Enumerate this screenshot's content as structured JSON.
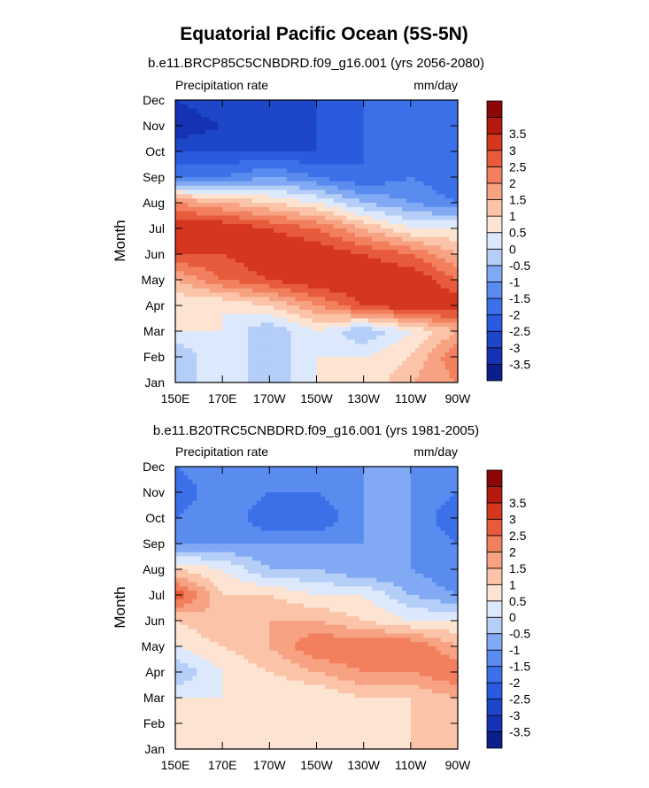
{
  "figure_title": "Equatorial Pacific Ocean (5S-5N)",
  "colors": {
    "levels": [
      -3.5,
      -3,
      -2.5,
      -2,
      -1.5,
      -1,
      -0.5,
      0,
      0.5,
      1,
      1.5,
      2,
      2.5,
      3,
      3.5
    ],
    "palette": [
      "#0a1e8c",
      "#1632b4",
      "#1e46c8",
      "#2a5ade",
      "#3c70e8",
      "#5a8cf0",
      "#82aaf4",
      "#b4cef8",
      "#dce8fc",
      "#fde4d2",
      "#fbc4a8",
      "#f7a282",
      "#f2805e",
      "#e85a3c",
      "#d4361e",
      "#b41a10",
      "#8c0808"
    ]
  },
  "chart_data": [
    {
      "type": "heatmap",
      "plot_type": "filled contour (Hovmoller)",
      "title": "b.e11.BRCP85C5CNBDRD.f09_g16.001 (yrs 2056-2080)",
      "left_label": "Precipitation rate",
      "right_label": "mm/day",
      "xlabel": "",
      "ylabel": "Month",
      "x_ticks": [
        "150E",
        "170E",
        "170W",
        "150W",
        "130W",
        "110W",
        "90W"
      ],
      "y_ticks": [
        "Jan",
        "Feb",
        "Mar",
        "Apr",
        "May",
        "Jun",
        "Jul",
        "Aug",
        "Sep",
        "Oct",
        "Nov",
        "Dec"
      ],
      "xlim": [
        150,
        270
      ],
      "ylim": [
        1,
        12
      ],
      "colorbar_labels": [
        "-3.5",
        "-3",
        "-2.5",
        "-2",
        "-1.5",
        "-1",
        "-0.5",
        "0",
        "0.5",
        "1",
        "1.5",
        "2",
        "2.5",
        "3",
        "3.5"
      ],
      "anomaly_field": {
        "longitude_deg_east": [
          150,
          170,
          190,
          210,
          230,
          250,
          270
        ],
        "rows": [
          {
            "month": "Jan",
            "values": [
              -0.5,
              0.5,
              -0.5,
              0.5,
              0.5,
              1.5,
              2.0
            ]
          },
          {
            "month": "Feb",
            "values": [
              -0.5,
              0.5,
              -0.5,
              0.5,
              0.5,
              1.0,
              2.5
            ]
          },
          {
            "month": "Mar",
            "values": [
              0.5,
              0.5,
              -0.5,
              0.5,
              -0.5,
              0.5,
              1.5
            ]
          },
          {
            "month": "Apr",
            "values": [
              0.5,
              0.5,
              1.0,
              2.0,
              3.0,
              3.5,
              3.5
            ]
          },
          {
            "month": "May",
            "values": [
              1.5,
              2.5,
              3.0,
              3.5,
              3.5,
              3.5,
              2.5
            ]
          },
          {
            "month": "Jun",
            "values": [
              3.0,
              3.0,
              3.5,
              3.5,
              3.0,
              2.5,
              1.5
            ]
          },
          {
            "month": "Jul",
            "values": [
              3.5,
              3.5,
              3.0,
              2.5,
              1.5,
              0.5,
              0.5
            ]
          },
          {
            "month": "Aug",
            "values": [
              2.0,
              1.5,
              1.0,
              0.5,
              -0.5,
              -1.0,
              -1.5
            ]
          },
          {
            "month": "Sep",
            "values": [
              -1.5,
              -1.5,
              -1.0,
              -1.5,
              -2.0,
              -1.5,
              -2.0
            ]
          },
          {
            "month": "Oct",
            "values": [
              -2.5,
              -2.5,
              -2.5,
              -2.5,
              -2.0,
              -1.5,
              -2.0
            ]
          },
          {
            "month": "Nov",
            "values": [
              -3.5,
              -3.0,
              -3.0,
              -2.5,
              -2.0,
              -2.0,
              -2.0
            ]
          },
          {
            "month": "Dec",
            "values": [
              -3.0,
              -2.5,
              -2.5,
              -2.5,
              -2.0,
              -2.0,
              -2.0
            ]
          }
        ]
      }
    },
    {
      "type": "heatmap",
      "plot_type": "filled contour (Hovmoller)",
      "title": "b.e11.B20TRC5CNBDRD.f09_g16.001 (yrs 1981-2005)",
      "left_label": "Precipitation rate",
      "right_label": "mm/day",
      "xlabel": "",
      "ylabel": "Month",
      "x_ticks": [
        "150E",
        "170E",
        "170W",
        "150W",
        "130W",
        "110W",
        "90W"
      ],
      "y_ticks": [
        "Jan",
        "Feb",
        "Mar",
        "Apr",
        "May",
        "Jun",
        "Jul",
        "Aug",
        "Sep",
        "Oct",
        "Nov",
        "Dec"
      ],
      "xlim": [
        150,
        270
      ],
      "ylim": [
        1,
        12
      ],
      "colorbar_labels": [
        "-3.5",
        "-3",
        "-2.5",
        "-2",
        "-1.5",
        "-1",
        "-0.5",
        "0",
        "0.5",
        "1",
        "1.5",
        "2",
        "2.5",
        "3",
        "3.5"
      ],
      "anomaly_field": {
        "longitude_deg_east": [
          150,
          170,
          190,
          210,
          230,
          250,
          270
        ],
        "rows": [
          {
            "month": "Jan",
            "values": [
              0.5,
              0.5,
              0.5,
              0.5,
              0.5,
              1.0,
              1.0
            ]
          },
          {
            "month": "Feb",
            "values": [
              0.5,
              0.5,
              0.5,
              0.5,
              0.5,
              1.0,
              1.0
            ]
          },
          {
            "month": "Mar",
            "values": [
              0.5,
              0.5,
              0.5,
              0.5,
              1.0,
              1.0,
              1.5
            ]
          },
          {
            "month": "Apr",
            "values": [
              -0.5,
              0.5,
              1.0,
              1.5,
              2.0,
              2.0,
              2.5
            ]
          },
          {
            "month": "May",
            "values": [
              0.5,
              1.0,
              1.5,
              2.5,
              2.5,
              2.5,
              1.5
            ]
          },
          {
            "month": "Jun",
            "values": [
              1.0,
              1.5,
              1.5,
              1.5,
              1.0,
              0.5,
              0.5
            ]
          },
          {
            "month": "Jul",
            "values": [
              3.0,
              1.0,
              1.0,
              0.5,
              0.5,
              -0.5,
              -1.0
            ]
          },
          {
            "month": "Aug",
            "values": [
              1.0,
              0.5,
              -0.5,
              -0.5,
              -1.0,
              -1.0,
              -1.5
            ]
          },
          {
            "month": "Sep",
            "values": [
              -1.0,
              -1.0,
              -1.0,
              -1.0,
              -1.0,
              -1.0,
              -1.5
            ]
          },
          {
            "month": "Oct",
            "values": [
              -1.5,
              -1.0,
              -2.0,
              -2.0,
              -1.0,
              -1.0,
              -2.0
            ]
          },
          {
            "month": "Nov",
            "values": [
              -2.0,
              -1.0,
              -1.5,
              -1.5,
              -1.0,
              -1.0,
              -1.5
            ]
          },
          {
            "month": "Dec",
            "values": [
              -1.5,
              -1.0,
              -1.0,
              -1.0,
              -1.0,
              -1.0,
              -1.0
            ]
          }
        ]
      }
    }
  ]
}
